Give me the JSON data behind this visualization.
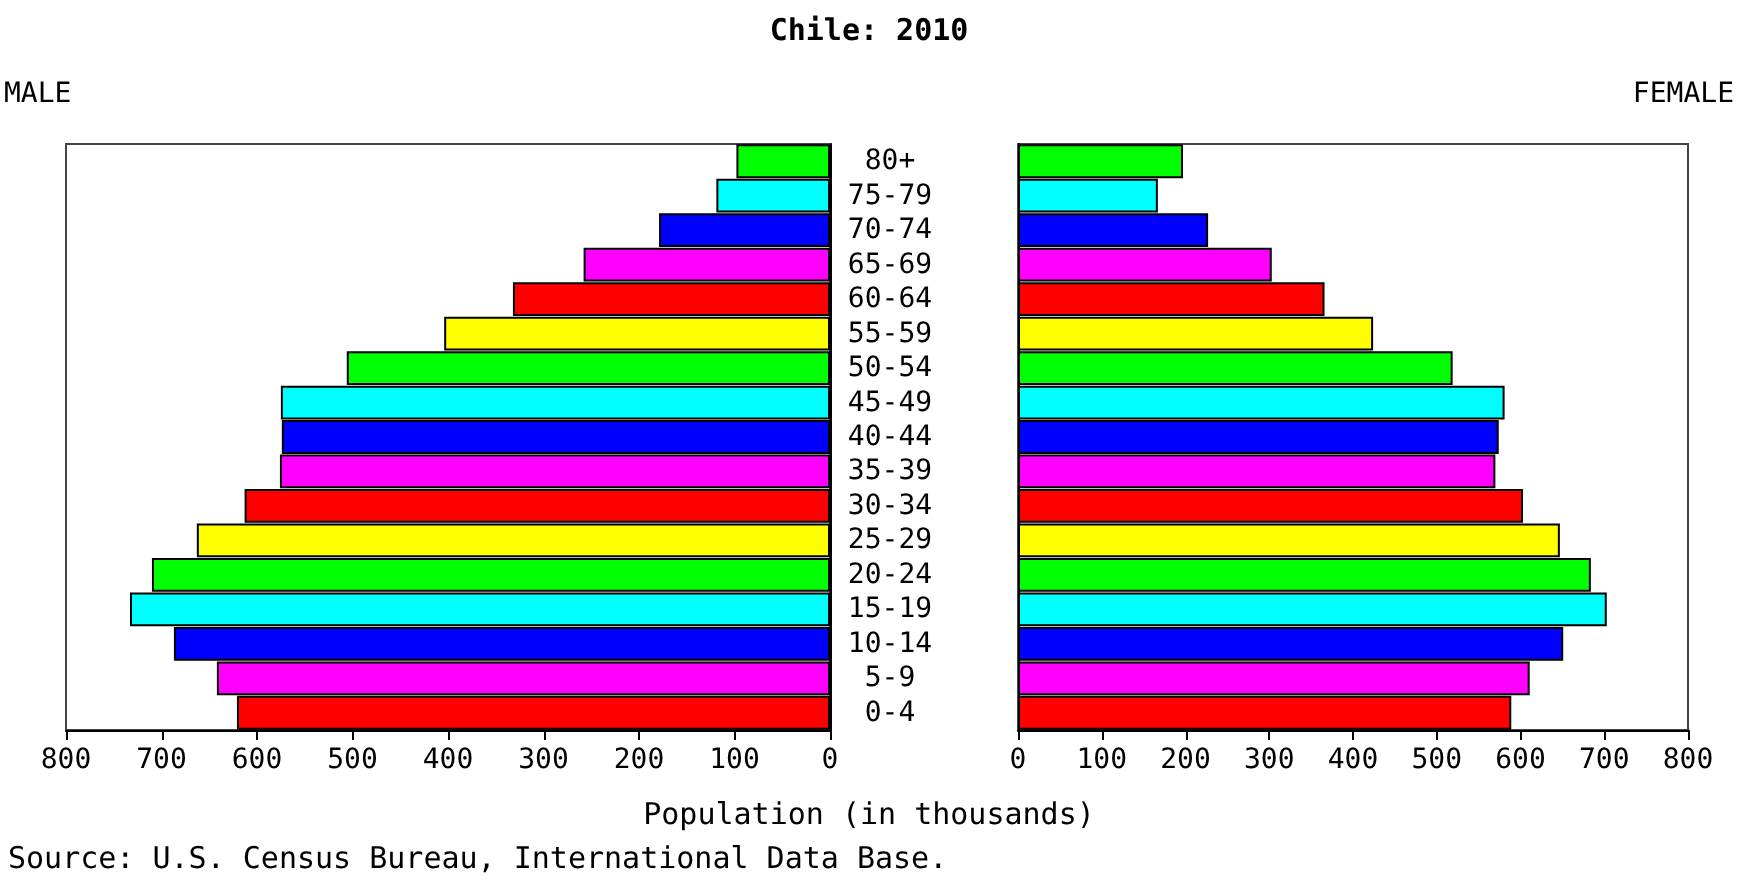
{
  "chart_data": [
    {
      "type": "bar",
      "orientation": "horizontal",
      "title": "Chile: 2010",
      "xlabel": "Population (in thousands)",
      "annotations": [
        "Source: U.S. Census Bureau, International Data Base."
      ],
      "categories": [
        "80+",
        "75-79",
        "70-74",
        "65-69",
        "60-64",
        "55-59",
        "50-54",
        "45-49",
        "40-44",
        "35-39",
        "30-34",
        "25-29",
        "20-24",
        "15-19",
        "10-14",
        "5-9",
        "0-4"
      ],
      "colors": [
        "#00ff00",
        "#00ffff",
        "#0000ff",
        "#ff00ff",
        "#ff0000",
        "#ffff00",
        "#00ff00",
        "#00ffff",
        "#0000ff",
        "#ff00ff",
        "#ff0000",
        "#ffff00",
        "#00ff00",
        "#00ffff",
        "#0000ff",
        "#ff00ff",
        "#ff0000"
      ],
      "series": [
        {
          "name": "MALE",
          "values": [
            98,
            119,
            179,
            258,
            332,
            404,
            506,
            575,
            574,
            576,
            613,
            663,
            710,
            733,
            687,
            642,
            621
          ]
        }
      ],
      "xlim": [
        800,
        0
      ],
      "xticks": [
        800,
        700,
        600,
        500,
        400,
        300,
        200,
        100,
        0
      ]
    },
    {
      "type": "bar",
      "orientation": "horizontal",
      "categories": [
        null,
        null,
        null,
        null,
        null,
        null,
        null,
        null,
        null,
        null,
        null,
        null,
        null,
        null,
        null,
        null,
        null
      ],
      "colors": [
        "#00ff00",
        "#00ffff",
        "#0000ff",
        "#ff00ff",
        "#ff0000",
        "#ffff00",
        "#00ff00",
        "#00ffff",
        "#0000ff",
        "#ff00ff",
        "#ff0000",
        "#ffff00",
        "#00ff00",
        "#00ffff",
        "#0000ff",
        "#ff00ff",
        "#ff0000"
      ],
      "series": [
        {
          "name": "FEMALE",
          "values": [
            197,
            167,
            227,
            303,
            366,
            424,
            519,
            581,
            574,
            570,
            603,
            647,
            684,
            703,
            651,
            611,
            589
          ]
        }
      ],
      "xlim": [
        0,
        800
      ],
      "xticks": [
        0,
        100,
        200,
        300,
        400,
        500,
        600,
        700,
        800
      ]
    }
  ]
}
